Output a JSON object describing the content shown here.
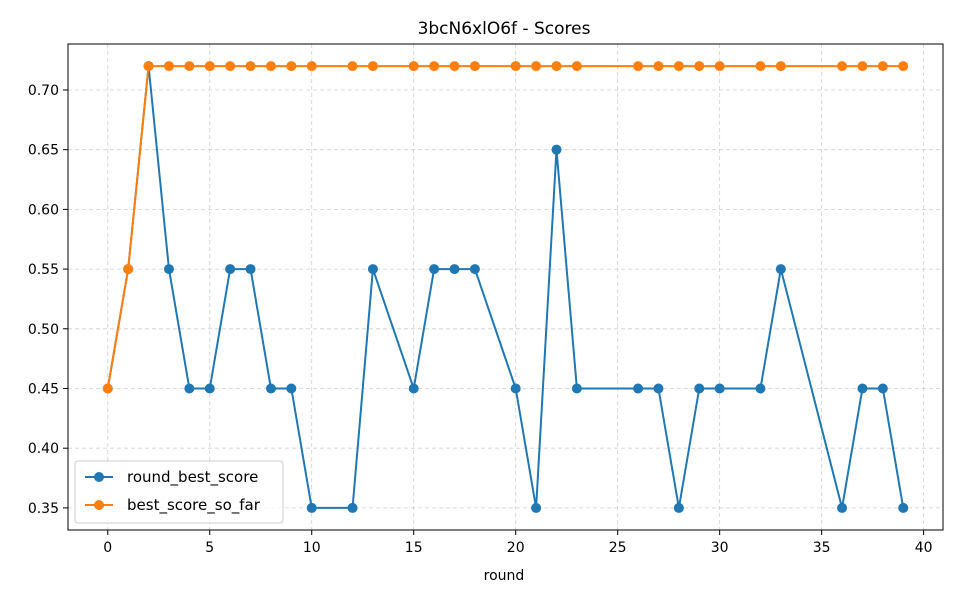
{
  "chart_data": {
    "type": "line",
    "title": "3bcN6xlO6f - Scores",
    "xlabel": "round",
    "ylabel": "",
    "xlim": [
      -1.95,
      40.95
    ],
    "ylim": [
      0.3315,
      0.7385
    ],
    "xticks": [
      0,
      5,
      10,
      15,
      20,
      25,
      30,
      35,
      40
    ],
    "yticks": [
      0.35,
      0.4,
      0.45,
      0.5,
      0.55,
      0.6,
      0.65,
      0.7
    ],
    "grid": true,
    "legend_position": "lower-left",
    "x": [
      0,
      1,
      2,
      3,
      4,
      5,
      6,
      7,
      8,
      9,
      10,
      12,
      13,
      15,
      16,
      17,
      18,
      20,
      21,
      22,
      23,
      26,
      27,
      28,
      29,
      30,
      32,
      33,
      36,
      37,
      38,
      39
    ],
    "series": [
      {
        "name": "round_best_score",
        "color": "#1f77b4",
        "values": [
          0.45,
          0.55,
          0.72,
          0.55,
          0.45,
          0.45,
          0.55,
          0.55,
          0.45,
          0.45,
          0.35,
          0.35,
          0.55,
          0.45,
          0.55,
          0.55,
          0.55,
          0.45,
          0.35,
          0.65,
          0.45,
          0.45,
          0.45,
          0.35,
          0.45,
          0.45,
          0.45,
          0.55,
          0.35,
          0.45,
          0.45,
          0.35
        ]
      },
      {
        "name": "best_score_so_far",
        "color": "#ff7f0e",
        "values": [
          0.45,
          0.55,
          0.72,
          0.72,
          0.72,
          0.72,
          0.72,
          0.72,
          0.72,
          0.72,
          0.72,
          0.72,
          0.72,
          0.72,
          0.72,
          0.72,
          0.72,
          0.72,
          0.72,
          0.72,
          0.72,
          0.72,
          0.72,
          0.72,
          0.72,
          0.72,
          0.72,
          0.72,
          0.72,
          0.72,
          0.72,
          0.72
        ]
      }
    ]
  }
}
